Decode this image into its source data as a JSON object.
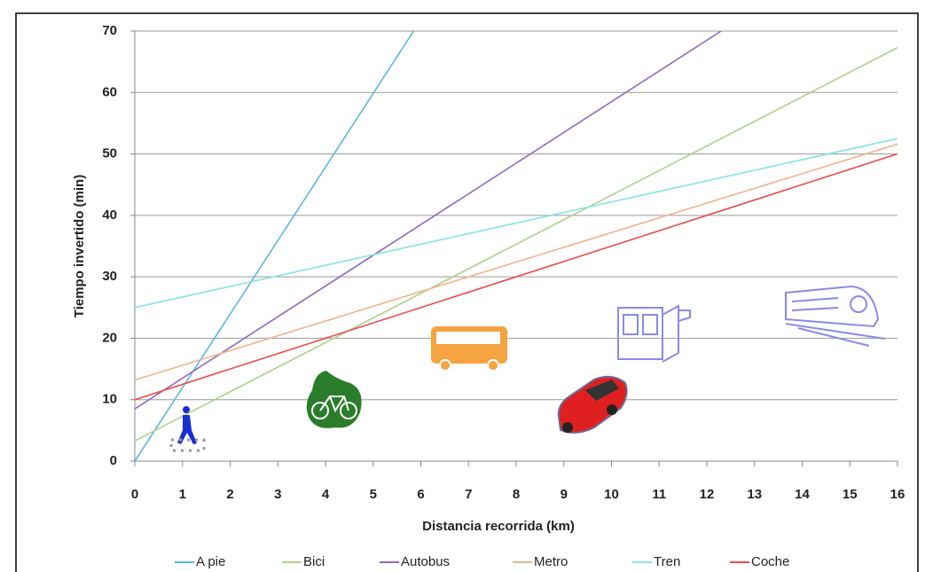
{
  "chart_data": {
    "type": "line",
    "xlabel": "Distancia recorrida (km)",
    "ylabel": "Tiempo invertido (min)",
    "xlim": [
      0,
      16
    ],
    "xticks": [
      0,
      1,
      2,
      3,
      4,
      5,
      6,
      7,
      8,
      9,
      10,
      11,
      12,
      13,
      14,
      15,
      16
    ],
    "ylim": [
      0,
      70
    ],
    "yticks": [
      0,
      10,
      20,
      30,
      40,
      50,
      60,
      70
    ],
    "grid": true,
    "legend": "bottom",
    "series": [
      {
        "name": "A pie",
        "color": "#5bb8dc",
        "x": [
          0,
          5.85
        ],
        "values": [
          0,
          70
        ]
      },
      {
        "name": "Bici",
        "color": "#aed08a",
        "x": [
          0,
          16
        ],
        "values": [
          3.3,
          67.3
        ]
      },
      {
        "name": "Autobus",
        "color": "#8e6bbd",
        "x": [
          0,
          12.3
        ],
        "values": [
          8.5,
          70
        ]
      },
      {
        "name": "Metro",
        "color": "#f2b28a",
        "x": [
          0,
          16
        ],
        "values": [
          13.2,
          51.6
        ]
      },
      {
        "name": "Tren",
        "color": "#86e3e3",
        "x": [
          0,
          16
        ],
        "values": [
          25,
          52.5
        ]
      },
      {
        "name": "Coche",
        "color": "#ec4a4a",
        "x": [
          0,
          16
        ],
        "values": [
          10,
          50
        ]
      }
    ]
  }
}
